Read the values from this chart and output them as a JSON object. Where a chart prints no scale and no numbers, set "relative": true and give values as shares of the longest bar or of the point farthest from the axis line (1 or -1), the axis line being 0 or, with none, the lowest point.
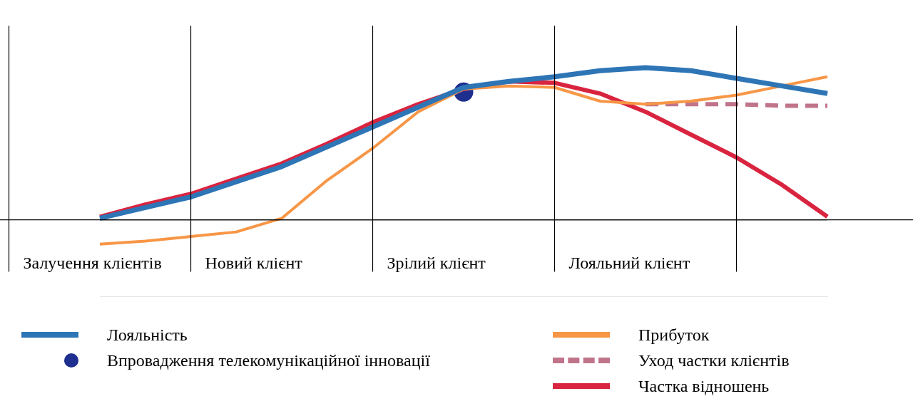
{
  "chart_data": {
    "type": "line",
    "relative": true,
    "legend": "bottom",
    "grid": "x",
    "categories": [
      null,
      null,
      null,
      null,
      null,
      null,
      null,
      null,
      null,
      null,
      null,
      null,
      null,
      null,
      null,
      null,
      null
    ],
    "annotations": [
      "Залучення клієнтів",
      "Новий клієнт",
      "Зрілий клієнт",
      "Лояльний клієнт"
    ],
    "series": [
      {
        "name": "Лояльність",
        "color": "#2e75b6",
        "values": [
          0.01,
          0.08,
          0.15,
          0.25,
          0.35,
          0.48,
          0.61,
          0.74,
          0.87,
          0.91,
          0.94,
          0.98,
          1,
          0.98,
          0.93,
          0.88,
          0.83
        ]
      },
      {
        "name": "Впровадження телекомунікаційної інновації",
        "color": "#1f2f8f",
        "marker": "circle",
        "values": [
          null,
          null,
          null,
          null,
          null,
          null,
          null,
          null,
          0.84,
          null,
          null,
          null,
          null,
          null,
          null,
          null,
          null
        ]
      },
      {
        "name": "Прибуток",
        "color": "#f79646",
        "values": [
          -0.16,
          -0.14,
          -0.11,
          -0.08,
          0.01,
          0.26,
          0.47,
          0.71,
          0.86,
          0.88,
          0.87,
          0.78,
          0.76,
          0.78,
          0.82,
          0.88,
          0.94
        ]
      },
      {
        "name": "Уход частки клієнтів",
        "color": "#c0748a",
        "line_style": "dashed",
        "values": [
          null,
          null,
          null,
          null,
          null,
          null,
          null,
          null,
          null,
          null,
          null,
          null,
          0.76,
          0.76,
          0.76,
          0.75,
          0.75
        ]
      },
      {
        "name": "Частка відношень",
        "color": "#d9243f",
        "values": [
          0.02,
          0.1,
          0.17,
          0.27,
          0.37,
          0.5,
          0.64,
          0.76,
          0.86,
          0.91,
          0.9,
          0.83,
          0.71,
          0.56,
          0.41,
          0.23,
          0.02
        ]
      }
    ]
  }
}
